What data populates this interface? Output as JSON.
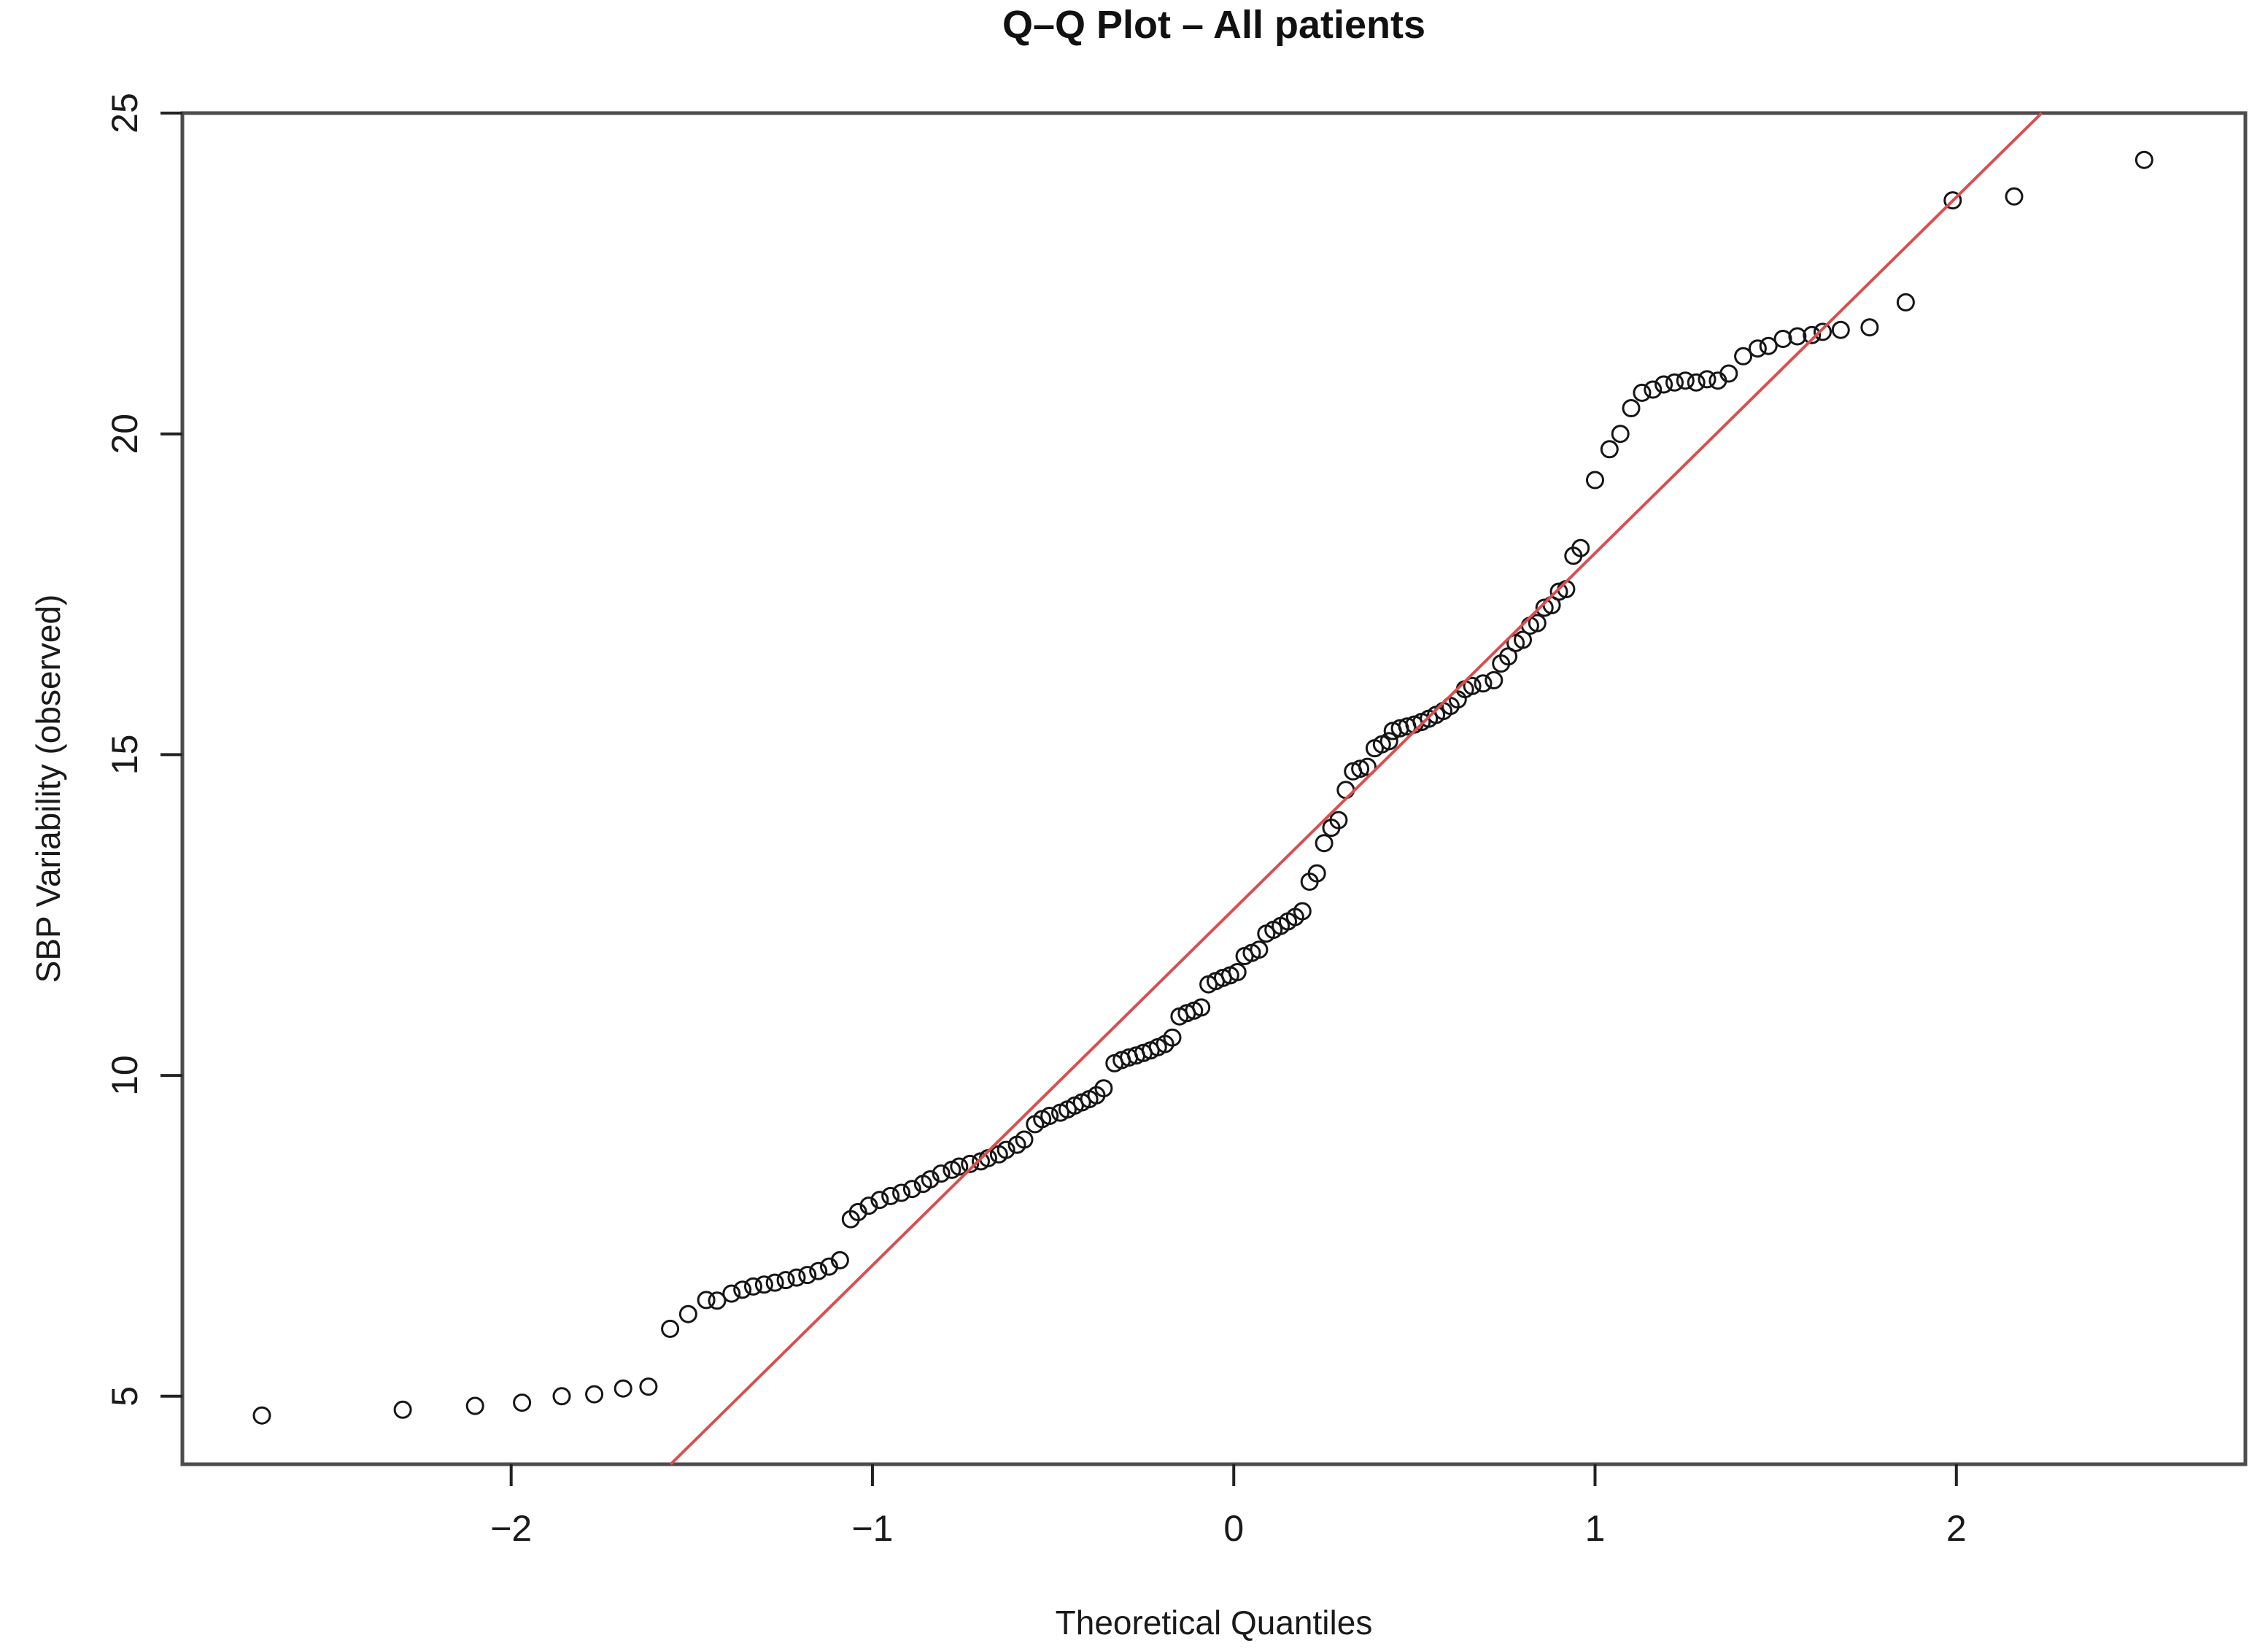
{
  "title": "Q–Q Plot – All patients",
  "chart_data": {
    "type": "scatter",
    "title": "Q–Q Plot – All patients",
    "xlabel": "Theoretical Quantiles",
    "ylabel": "SBP Variability (observed)",
    "xlim": [
      -2.91,
      2.8
    ],
    "ylim": [
      3.94,
      25.0
    ],
    "x_tick_values": [
      -2,
      -1,
      0,
      1,
      2
    ],
    "x_tick_labels": [
      "−2",
      "−1",
      "0",
      "1",
      "2"
    ],
    "y_tick_values": [
      5,
      10,
      15,
      20,
      25
    ],
    "y_tick_labels": [
      "5",
      "10",
      "15",
      "20",
      "25"
    ],
    "grid": false,
    "legend": null,
    "point_style": "open-circle",
    "point_color": "#161616",
    "reference_line": {
      "name": "qqline",
      "intercept": 12.59,
      "slope": 5.55,
      "color": "#d94f4f"
    },
    "axis_color": "#4c4c4c",
    "background_color": "#ffffff",
    "points": [
      [
        -2.69,
        4.7
      ],
      [
        -2.3,
        4.79
      ],
      [
        -2.1,
        4.85
      ],
      [
        -1.97,
        4.9
      ],
      [
        -1.86,
        5.0
      ],
      [
        -1.77,
        5.03
      ],
      [
        -1.69,
        5.12
      ],
      [
        -1.62,
        5.15
      ],
      [
        -1.56,
        6.05
      ],
      [
        -1.51,
        6.28
      ],
      [
        -1.46,
        6.5
      ],
      [
        -1.43,
        6.49
      ],
      [
        -1.39,
        6.6
      ],
      [
        -1.36,
        6.66
      ],
      [
        -1.33,
        6.71
      ],
      [
        -1.3,
        6.74
      ],
      [
        -1.27,
        6.77
      ],
      [
        -1.24,
        6.81
      ],
      [
        -1.21,
        6.85
      ],
      [
        -1.18,
        6.89
      ],
      [
        -1.15,
        6.95
      ],
      [
        -1.12,
        7.02
      ],
      [
        -1.09,
        7.12
      ],
      [
        -1.06,
        7.76
      ],
      [
        -1.04,
        7.87
      ],
      [
        -1.01,
        7.97
      ],
      [
        -0.98,
        8.06
      ],
      [
        -0.95,
        8.12
      ],
      [
        -0.92,
        8.17
      ],
      [
        -0.89,
        8.23
      ],
      [
        -0.86,
        8.31
      ],
      [
        -0.84,
        8.38
      ],
      [
        -0.81,
        8.47
      ],
      [
        -0.78,
        8.53
      ],
      [
        -0.76,
        8.58
      ],
      [
        -0.73,
        8.62
      ],
      [
        -0.7,
        8.66
      ],
      [
        -0.68,
        8.71
      ],
      [
        -0.65,
        8.77
      ],
      [
        -0.63,
        8.84
      ],
      [
        -0.6,
        8.92
      ],
      [
        -0.58,
        9.0
      ],
      [
        -0.55,
        9.24
      ],
      [
        -0.53,
        9.32
      ],
      [
        -0.51,
        9.37
      ],
      [
        -0.48,
        9.42
      ],
      [
        -0.46,
        9.47
      ],
      [
        -0.44,
        9.53
      ],
      [
        -0.42,
        9.58
      ],
      [
        -0.4,
        9.63
      ],
      [
        -0.38,
        9.69
      ],
      [
        -0.36,
        9.8
      ],
      [
        -0.33,
        10.19
      ],
      [
        -0.31,
        10.24
      ],
      [
        -0.29,
        10.28
      ],
      [
        -0.27,
        10.31
      ],
      [
        -0.25,
        10.35
      ],
      [
        -0.23,
        10.39
      ],
      [
        -0.21,
        10.44
      ],
      [
        -0.19,
        10.49
      ],
      [
        -0.17,
        10.59
      ],
      [
        -0.15,
        10.92
      ],
      [
        -0.13,
        10.97
      ],
      [
        -0.11,
        11.01
      ],
      [
        -0.09,
        11.06
      ],
      [
        -0.07,
        11.42
      ],
      [
        -0.05,
        11.47
      ],
      [
        -0.03,
        11.52
      ],
      [
        -0.01,
        11.56
      ],
      [
        0.01,
        11.61
      ],
      [
        0.03,
        11.86
      ],
      [
        0.05,
        11.91
      ],
      [
        0.07,
        11.96
      ],
      [
        0.09,
        12.21
      ],
      [
        0.11,
        12.27
      ],
      [
        0.13,
        12.33
      ],
      [
        0.15,
        12.4
      ],
      [
        0.17,
        12.47
      ],
      [
        0.19,
        12.56
      ],
      [
        0.21,
        13.02
      ],
      [
        0.23,
        13.15
      ],
      [
        0.25,
        13.62
      ],
      [
        0.27,
        13.86
      ],
      [
        0.29,
        13.98
      ],
      [
        0.31,
        14.45
      ],
      [
        0.33,
        14.74
      ],
      [
        0.35,
        14.78
      ],
      [
        0.37,
        14.81
      ],
      [
        0.39,
        15.1
      ],
      [
        0.41,
        15.16
      ],
      [
        0.43,
        15.21
      ],
      [
        0.44,
        15.37
      ],
      [
        0.46,
        15.41
      ],
      [
        0.48,
        15.44
      ],
      [
        0.5,
        15.47
      ],
      [
        0.52,
        15.51
      ],
      [
        0.54,
        15.56
      ],
      [
        0.56,
        15.62
      ],
      [
        0.58,
        15.68
      ],
      [
        0.6,
        15.76
      ],
      [
        0.62,
        15.86
      ],
      [
        0.64,
        16.02
      ],
      [
        0.66,
        16.07
      ],
      [
        0.69,
        16.11
      ],
      [
        0.72,
        16.16
      ],
      [
        0.74,
        16.42
      ],
      [
        0.76,
        16.53
      ],
      [
        0.78,
        16.74
      ],
      [
        0.8,
        16.79
      ],
      [
        0.82,
        17.01
      ],
      [
        0.84,
        17.05
      ],
      [
        0.86,
        17.29
      ],
      [
        0.88,
        17.33
      ],
      [
        0.9,
        17.54
      ],
      [
        0.92,
        17.58
      ],
      [
        0.94,
        18.1
      ],
      [
        0.96,
        18.22
      ],
      [
        1.0,
        19.28
      ],
      [
        1.04,
        19.76
      ],
      [
        1.07,
        20.0
      ],
      [
        1.1,
        20.4
      ],
      [
        1.13,
        20.64
      ],
      [
        1.16,
        20.69
      ],
      [
        1.19,
        20.77
      ],
      [
        1.22,
        20.8
      ],
      [
        1.25,
        20.83
      ],
      [
        1.28,
        20.8
      ],
      [
        1.31,
        20.85
      ],
      [
        1.34,
        20.83
      ],
      [
        1.37,
        20.94
      ],
      [
        1.41,
        21.21
      ],
      [
        1.45,
        21.33
      ],
      [
        1.48,
        21.37
      ],
      [
        1.52,
        21.48
      ],
      [
        1.56,
        21.52
      ],
      [
        1.6,
        21.54
      ],
      [
        1.63,
        21.59
      ],
      [
        1.68,
        21.62
      ],
      [
        1.76,
        21.66
      ],
      [
        1.86,
        22.05
      ],
      [
        1.99,
        23.64
      ],
      [
        2.16,
        23.7
      ],
      [
        2.52,
        24.27
      ]
    ]
  }
}
